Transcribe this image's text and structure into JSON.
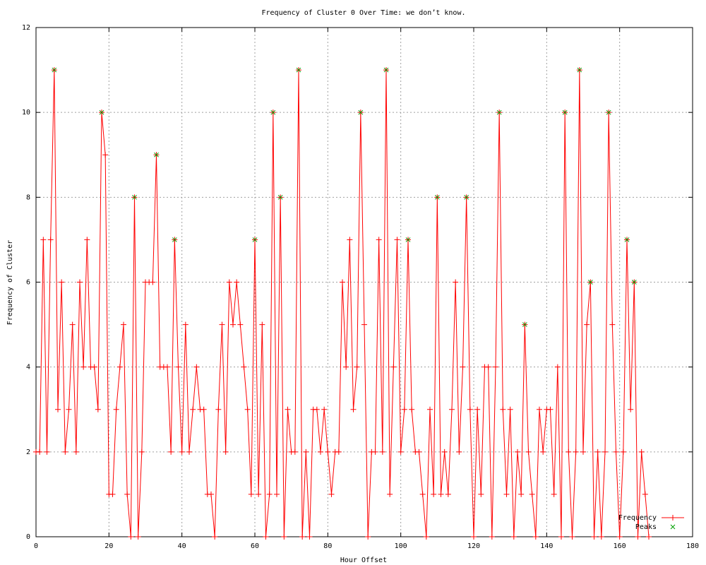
{
  "chart_data": {
    "type": "line",
    "title": "Frequency of Cluster 0 Over Time: we don’t know.",
    "xlabel": "Hour Offset",
    "ylabel": "Frequency of Cluster",
    "x": [
      0,
      1,
      2,
      3,
      4,
      5,
      6,
      7,
      8,
      9,
      10,
      11,
      12,
      13,
      14,
      15,
      16,
      17,
      18,
      19,
      20,
      21,
      22,
      23,
      24,
      25,
      26,
      27,
      28,
      29,
      30,
      31,
      32,
      33,
      34,
      35,
      36,
      37,
      38,
      39,
      40,
      41,
      42,
      43,
      44,
      45,
      46,
      47,
      48,
      49,
      50,
      51,
      52,
      53,
      54,
      55,
      56,
      57,
      58,
      59,
      60,
      61,
      62,
      63,
      64,
      65,
      66,
      67,
      68,
      69,
      70,
      71,
      72,
      73,
      74,
      75,
      76,
      77,
      78,
      79,
      80,
      81,
      82,
      83,
      84,
      85,
      86,
      87,
      88,
      89,
      90,
      91,
      92,
      93,
      94,
      95,
      96,
      97,
      98,
      99,
      100,
      101,
      102,
      103,
      104,
      105,
      106,
      107,
      108,
      109,
      110,
      111,
      112,
      113,
      114,
      115,
      116,
      117,
      118,
      119,
      120,
      121,
      122,
      123,
      124,
      125,
      126,
      127,
      128,
      129,
      130,
      131,
      132,
      133,
      134,
      135,
      136,
      137,
      138,
      139,
      140,
      141,
      142,
      143,
      144,
      145,
      146,
      147,
      148,
      149,
      150,
      151,
      152,
      153,
      154,
      155,
      156,
      157,
      158,
      159,
      160,
      161,
      162,
      163,
      164,
      165,
      166,
      167,
      168
    ],
    "series": [
      {
        "name": "Frequency",
        "color": "#ff0000",
        "marker": "plus",
        "values": [
          2,
          2,
          7,
          2,
          7,
          11,
          3,
          6,
          2,
          3,
          5,
          2,
          6,
          4,
          7,
          4,
          4,
          3,
          10,
          9,
          1,
          1,
          3,
          4,
          5,
          1,
          0,
          8,
          0,
          2,
          6,
          6,
          6,
          9,
          4,
          4,
          4,
          2,
          7,
          4,
          2,
          5,
          2,
          3,
          4,
          3,
          3,
          1,
          1,
          0,
          3,
          5,
          2,
          6,
          5,
          6,
          5,
          4,
          3,
          1,
          7,
          1,
          5,
          0,
          1,
          10,
          1,
          8,
          0,
          3,
          2,
          2,
          11,
          0,
          2,
          0,
          3,
          3,
          2,
          3,
          2,
          1,
          2,
          2,
          6,
          4,
          7,
          3,
          4,
          10,
          5,
          0,
          2,
          2,
          7,
          2,
          11,
          1,
          4,
          7,
          2,
          3,
          7,
          3,
          2,
          2,
          1,
          0,
          3,
          1,
          8,
          1,
          2,
          1,
          3,
          6,
          2,
          4,
          8,
          3,
          0,
          3,
          1,
          4,
          4,
          0,
          4,
          10,
          3,
          1,
          3,
          0,
          2,
          1,
          5,
          2,
          1,
          0,
          3,
          2,
          3,
          3,
          1,
          4,
          0,
          10,
          2,
          0,
          2,
          11,
          2,
          5,
          6,
          0,
          2,
          0,
          2,
          10,
          5,
          2,
          0,
          2,
          7,
          3,
          6,
          0,
          2,
          1,
          0
        ]
      },
      {
        "name": "Peaks",
        "color": "#00a000",
        "marker": "cross",
        "x": [
          5,
          18,
          27,
          33,
          38,
          60,
          65,
          67,
          72,
          89,
          96,
          102,
          110,
          118,
          127,
          134,
          145,
          149,
          152,
          157,
          162,
          164
        ],
        "values": [
          11,
          10,
          8,
          9,
          7,
          7,
          10,
          8,
          11,
          10,
          11,
          7,
          8,
          8,
          10,
          5,
          10,
          11,
          6,
          10,
          7,
          6
        ]
      }
    ],
    "xlim": [
      0,
      180
    ],
    "xticks": [
      0,
      20,
      40,
      60,
      80,
      100,
      120,
      140,
      160,
      180
    ],
    "ylim": [
      0,
      12
    ],
    "yticks": [
      0,
      2,
      4,
      6,
      8,
      10,
      12
    ],
    "grid": true,
    "legend": "lower right"
  }
}
